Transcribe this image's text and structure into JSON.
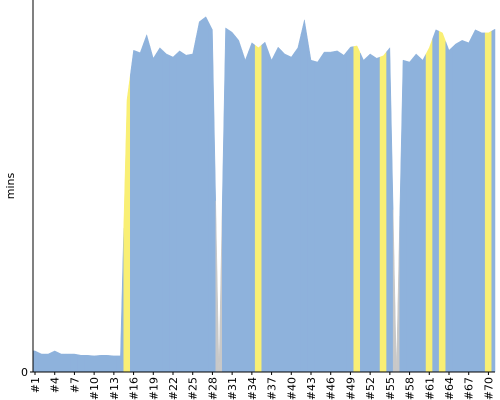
{
  "chart_data": {
    "type": "area",
    "y_label": "mins",
    "categories": [
      "#1",
      null,
      null,
      "#4",
      null,
      null,
      "#7",
      null,
      null,
      "#10",
      null,
      null,
      "#13",
      null,
      null,
      "#16",
      null,
      null,
      "#19",
      null,
      null,
      "#22",
      null,
      null,
      "#25",
      null,
      null,
      "#28",
      null,
      null,
      "#31",
      null,
      null,
      "#34",
      null,
      null,
      "#37",
      null,
      null,
      "#40",
      null,
      null,
      "#43",
      null,
      null,
      "#46",
      null,
      null,
      "#49",
      null,
      null,
      "#52",
      null,
      null,
      "#55",
      null,
      null,
      "#58",
      null,
      null,
      "#61",
      null,
      null,
      "#64",
      null,
      null,
      "#67",
      null,
      null,
      "#70",
      null
    ],
    "values": [
      3.4,
      2.9,
      2.9,
      3.4,
      2.9,
      2.9,
      2.9,
      2.7,
      2.7,
      2.6,
      2.7,
      2.7,
      2.6,
      2.6,
      43.9,
      51.9,
      51.5,
      54.4,
      50.6,
      52.3,
      51.3,
      50.8,
      51.8,
      51.1,
      51.3,
      56.5,
      57.3,
      55.2,
      0,
      55.5,
      54.8,
      53.5,
      50.3,
      53.1,
      52.3,
      53.2,
      50.3,
      52.4,
      51.3,
      50.8,
      52.3,
      56.8,
      50.3,
      50.0,
      51.6,
      51.6,
      51.8,
      51.1,
      52.4,
      52.6,
      50.3,
      51.3,
      50.6,
      51.0,
      52.3,
      0,
      50.3,
      50.0,
      51.3,
      50.3,
      52.3,
      55.2,
      54.7,
      51.9,
      52.9,
      53.5,
      53.1,
      55.2,
      54.7,
      54.7,
      55.3
    ],
    "color": "#8eb2dc",
    "point_colors": {
      "14": "#f9ef74",
      "28": "#c8c8c8",
      "34": "#f9ef74",
      "49": "#f9ef74",
      "53": "#f9ef74",
      "55": "#c8c8c8",
      "60": "#f9ef74",
      "62": "#f9ef74",
      "69": "#f9ef74"
    },
    "ylim": [
      0,
      60
    ],
    "yticks": [
      0
    ]
  }
}
